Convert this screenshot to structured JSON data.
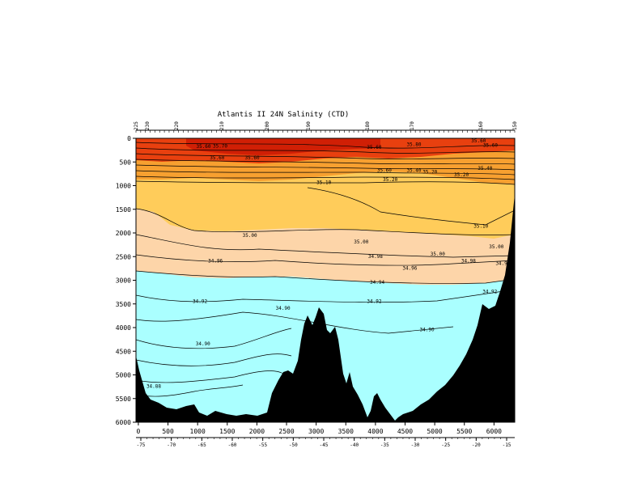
{
  "chart_data": {
    "type": "contour",
    "title": "Atlantis II 24N Salinity (CTD)",
    "xlabel": "",
    "ylabel": "",
    "xlim": [
      -40,
      6350
    ],
    "ylim": [
      6000,
      0
    ],
    "x_ticks": [
      0,
      500,
      1000,
      1500,
      2000,
      2500,
      3000,
      3500,
      4000,
      4500,
      5000,
      5500,
      6000
    ],
    "y_ticks": [
      0,
      500,
      1000,
      1500,
      2000,
      2500,
      3000,
      3500,
      4000,
      4500,
      5000,
      5500,
      6000
    ],
    "lon_ticks": [
      "-75",
      "-70",
      "-65",
      "-60",
      "-55",
      "-50",
      "-45",
      "-40",
      "-35",
      "-30",
      "-25",
      "-20",
      "-15"
    ],
    "station_ticks": [
      "225",
      "230",
      "220",
      "210",
      "200",
      "190",
      "180",
      "170",
      "160",
      "150"
    ],
    "fill_levels": [
      {
        "name": "salinity >= 35.60",
        "color": "#e8400f"
      },
      {
        "name": "35.10 - 35.60",
        "color": "#f7a030"
      },
      {
        "name": "35.00 - 35.10",
        "color": "#ffcc5a"
      },
      {
        "name": "34.94 - 35.00",
        "color": "#fdd5a9"
      },
      {
        "name": "salinity < 34.94",
        "color": "#aaffff"
      },
      {
        "name": "bathymetry",
        "color": "#000000"
      }
    ],
    "contour_labels": [
      {
        "text": "35.60",
        "x": 1100,
        "y": 180
      },
      {
        "text": "35.70",
        "x": 1380,
        "y": 170
      },
      {
        "text": "35.60",
        "x": 1330,
        "y": 420
      },
      {
        "text": "35.60",
        "x": 1920,
        "y": 420
      },
      {
        "text": "35.60",
        "x": 3980,
        "y": 200
      },
      {
        "text": "35.60",
        "x": 5740,
        "y": 60
      },
      {
        "text": "35.60",
        "x": 5940,
        "y": 150
      },
      {
        "text": "35.80",
        "x": 4650,
        "y": 140
      },
      {
        "text": "35.60",
        "x": 4150,
        "y": 680
      },
      {
        "text": "35.40",
        "x": 4650,
        "y": 680
      },
      {
        "text": "35.20",
        "x": 4920,
        "y": 720
      },
      {
        "text": "35.20",
        "x": 5450,
        "y": 780
      },
      {
        "text": "35.20",
        "x": 4250,
        "y": 880
      },
      {
        "text": "35.40",
        "x": 5850,
        "y": 640
      },
      {
        "text": "35.10",
        "x": 3130,
        "y": 940
      },
      {
        "text": "35.10",
        "x": 5780,
        "y": 1860
      },
      {
        "text": "35.00",
        "x": 1880,
        "y": 2060
      },
      {
        "text": "35.00",
        "x": 3760,
        "y": 2200
      },
      {
        "text": "35.00",
        "x": 5050,
        "y": 2450
      },
      {
        "text": "35.00",
        "x": 6040,
        "y": 2300
      },
      {
        "text": "34.98",
        "x": 4000,
        "y": 2500
      },
      {
        "text": "34.98",
        "x": 5570,
        "y": 2600
      },
      {
        "text": "34.96",
        "x": 1300,
        "y": 2600
      },
      {
        "text": "34.96",
        "x": 4580,
        "y": 2750
      },
      {
        "text": "34.94",
        "x": 4030,
        "y": 3050
      },
      {
        "text": "34.94",
        "x": 6150,
        "y": 2650
      },
      {
        "text": "34.92",
        "x": 1040,
        "y": 3450
      },
      {
        "text": "34.92",
        "x": 3980,
        "y": 3450
      },
      {
        "text": "34.92",
        "x": 5930,
        "y": 3250
      },
      {
        "text": "34.90",
        "x": 2440,
        "y": 3600
      },
      {
        "text": "34.90",
        "x": 4870,
        "y": 4050
      },
      {
        "text": "34.90",
        "x": 1090,
        "y": 4350
      },
      {
        "text": "34.88",
        "x": 260,
        "y": 5250
      }
    ]
  }
}
